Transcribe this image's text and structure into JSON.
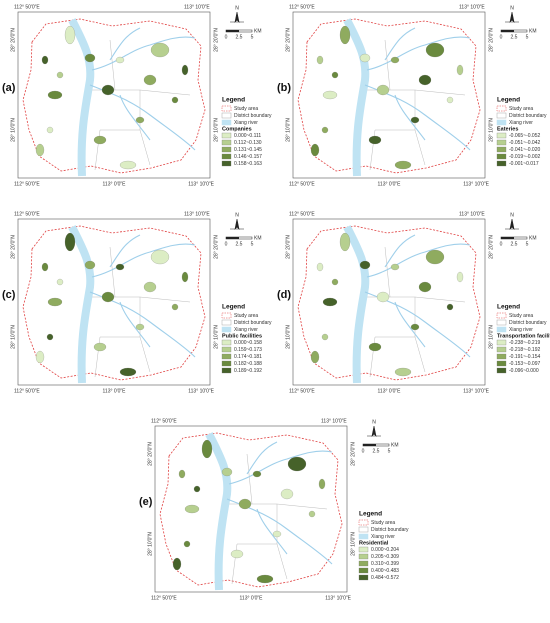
{
  "map": {
    "top_labels": [
      "112° 50'0\"E",
      "113° 10'0\"E"
    ],
    "bottom_labels": [
      "112° 50'0\"E",
      "113° 0'0\"E",
      "113° 10'0\"E"
    ],
    "lat_labels": [
      "28° 20'0\"N",
      "28° 10'0\"N"
    ],
    "north": "N",
    "scale": [
      "0",
      "2.5",
      "5"
    ],
    "scale_unit": "KM"
  },
  "legend": {
    "title": "Legend",
    "items": [
      "Study area",
      "District boundary",
      "Xiang river"
    ]
  },
  "panels": [
    {
      "label": "(a)",
      "theme": "Companies",
      "classes": [
        "0.000~0.111",
        "0.112~0.130",
        "0.131~0.145",
        "0.146~0.157",
        "0.158~0.163"
      ]
    },
    {
      "label": "(b)",
      "theme": "Eateries",
      "classes": [
        "-0.065~-0.052",
        "-0.051~-0.042",
        "-0.041~-0.020",
        "-0.019~-0.002",
        "-0.001~0.017"
      ]
    },
    {
      "label": "(c)",
      "theme": "Public facilities",
      "classes": [
        "0.000~0.158",
        "0.159~0.173",
        "0.174~0.181",
        "0.182~0.188",
        "0.189~0.192"
      ]
    },
    {
      "label": "(d)",
      "theme": "Transportation facilities",
      "classes": [
        "-0.238~-0.219",
        "-0.218~-0.192",
        "-0.191~-0.154",
        "-0.153~-0.097",
        "-0.096~0.000"
      ]
    },
    {
      "label": "(e)",
      "theme": "Residential",
      "classes": [
        "0.000~0.204",
        "0.205~0.309",
        "0.310~0.399",
        "0.400~0.483",
        "0.484~0.572"
      ]
    }
  ]
}
